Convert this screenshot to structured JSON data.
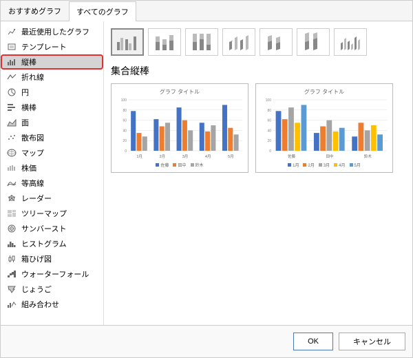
{
  "tabs": {
    "recommended": "おすすめグラフ",
    "all": "すべてのグラフ"
  },
  "sidebar": [
    {
      "label": "最近使用したグラフ"
    },
    {
      "label": "テンプレート"
    },
    {
      "label": "縦棒",
      "selected": true,
      "highlighted": true
    },
    {
      "label": "折れ線"
    },
    {
      "label": "円"
    },
    {
      "label": "横棒"
    },
    {
      "label": "面"
    },
    {
      "label": "散布図"
    },
    {
      "label": "マップ"
    },
    {
      "label": "株価"
    },
    {
      "label": "等高線"
    },
    {
      "label": "レーダー"
    },
    {
      "label": "ツリーマップ"
    },
    {
      "label": "サンバースト"
    },
    {
      "label": "ヒストグラム"
    },
    {
      "label": "箱ひげ図"
    },
    {
      "label": "ウォーターフォール"
    },
    {
      "label": "じょうご"
    },
    {
      "label": "組み合わせ"
    }
  ],
  "subtype_count": 7,
  "selected_subtype": 0,
  "chart_type_label": "集合縦棒",
  "preview_title": "グラフ タイトル",
  "preview1": {
    "categories": [
      "1月",
      "2月",
      "3月",
      "4月",
      "5月"
    ],
    "series": [
      {
        "name": "佐藤",
        "color": "#4472c4",
        "values": [
          78,
          62,
          85,
          55,
          90
        ]
      },
      {
        "name": "田中",
        "color": "#ed7d31",
        "values": [
          35,
          48,
          60,
          38,
          45
        ]
      },
      {
        "name": "鈴木",
        "color": "#a5a5a5",
        "values": [
          28,
          55,
          40,
          50,
          32
        ]
      }
    ],
    "ymax": 100
  },
  "preview2": {
    "categories": [
      "佐藤",
      "田中",
      "鈴木"
    ],
    "series": [
      {
        "name": "1月",
        "color": "#4472c4",
        "values": [
          78,
          35,
          28
        ]
      },
      {
        "name": "2月",
        "color": "#ed7d31",
        "values": [
          62,
          48,
          55
        ]
      },
      {
        "name": "3月",
        "color": "#a5a5a5",
        "values": [
          85,
          60,
          40
        ]
      },
      {
        "name": "4月",
        "color": "#ffc000",
        "values": [
          55,
          38,
          50
        ]
      },
      {
        "name": "5月",
        "color": "#5b9bd5",
        "values": [
          90,
          45,
          32
        ]
      }
    ],
    "ymax": 100
  },
  "buttons": {
    "ok": "OK",
    "cancel": "キャンセル"
  },
  "colors": {
    "highlight": "#e03030",
    "selected_bg": "#d4d4d4"
  }
}
